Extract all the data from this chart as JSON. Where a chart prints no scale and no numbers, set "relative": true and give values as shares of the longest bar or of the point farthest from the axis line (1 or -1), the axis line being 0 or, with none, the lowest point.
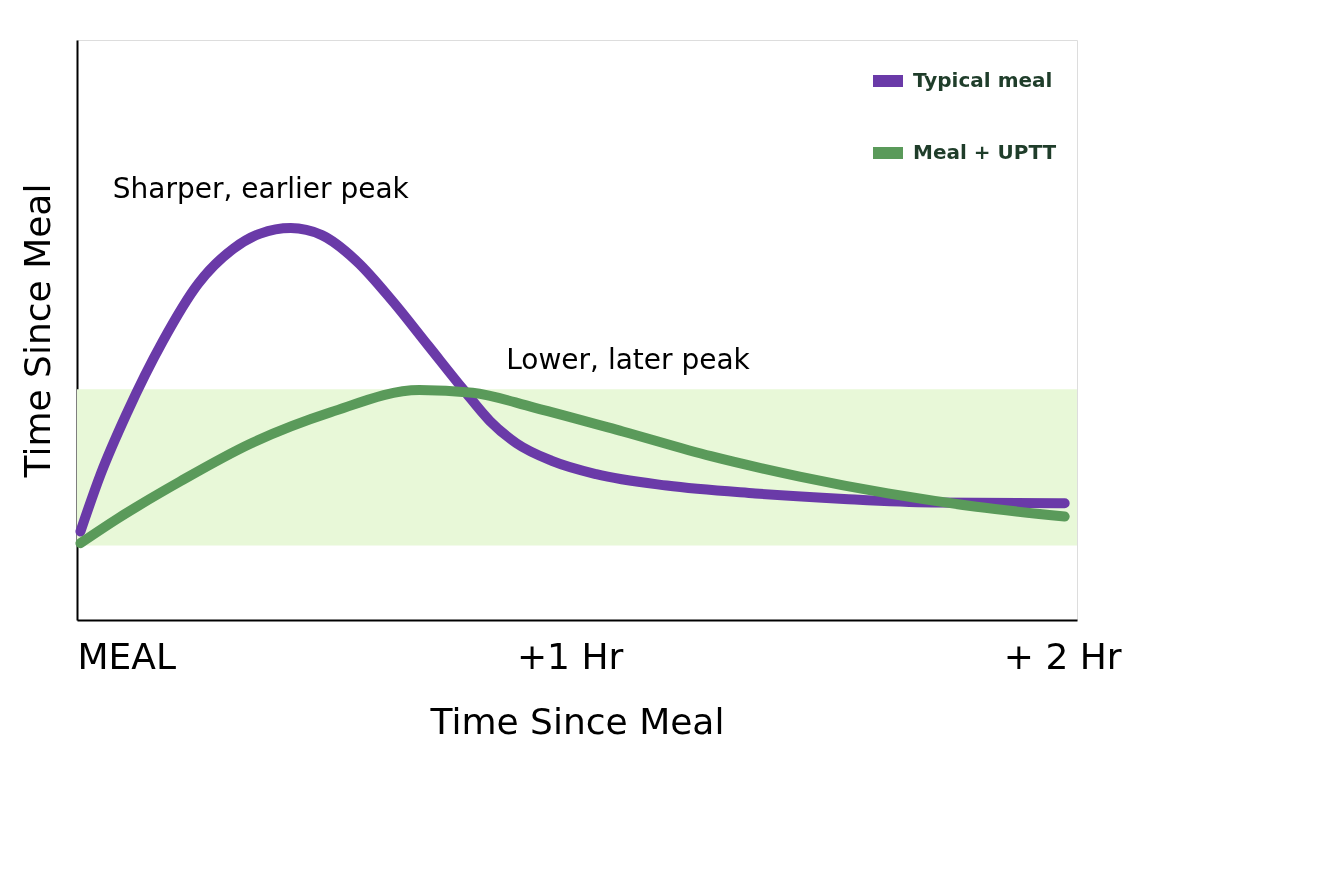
{
  "chart_data": {
    "type": "line",
    "relative": true,
    "xlabel": "Time Since Meal",
    "ylabel": "Time Since Meal",
    "xlim": [
      0,
      2.03
    ],
    "xticks": [
      {
        "value": 0,
        "label": "MEAL"
      },
      {
        "value": 1,
        "label": "+1 Hr"
      },
      {
        "value": 2,
        "label": "+ 2 Hr"
      }
    ],
    "tick_labels": "x",
    "grid": false,
    "legend": "top right",
    "marker": "none",
    "line_style": "solid",
    "series": [
      {
        "name": "Typical meal",
        "color": "#6a3aa8",
        "x": [
          0.007,
          0.048,
          0.102,
          0.174,
          0.246,
          0.318,
          0.372,
          0.434,
          0.497,
          0.569,
          0.641,
          0.713,
          0.785,
          0.838,
          0.892,
          0.964,
          1.054,
          1.197,
          1.377,
          1.557,
          1.736,
          2.005
        ],
        "values": [
          0.226,
          0.372,
          0.53,
          0.711,
          0.858,
          0.948,
          0.986,
          1.0,
          0.982,
          0.914,
          0.813,
          0.7,
          0.587,
          0.508,
          0.451,
          0.406,
          0.372,
          0.343,
          0.323,
          0.309,
          0.3,
          0.298
        ]
      },
      {
        "name": "Meal + UPTT",
        "color": "#5a9a5a",
        "x": [
          0.007,
          0.084,
          0.21,
          0.354,
          0.515,
          0.695,
          0.803,
          0.928,
          1.108,
          1.287,
          1.467,
          1.646,
          1.826,
          2.005
        ],
        "values": [
          0.196,
          0.26,
          0.354,
          0.451,
          0.53,
          0.587,
          0.58,
          0.542,
          0.481,
          0.418,
          0.366,
          0.323,
          0.289,
          0.264
        ]
      }
    ],
    "bands": [
      {
        "axis": "y",
        "from": 0.19,
        "to": 0.589,
        "color": "#e8f8d8"
      }
    ],
    "annotations": [
      {
        "text": "Sharper, earlier peak",
        "x": 0.434,
        "y": 1.0
      },
      "Lower, later peak"
    ]
  }
}
